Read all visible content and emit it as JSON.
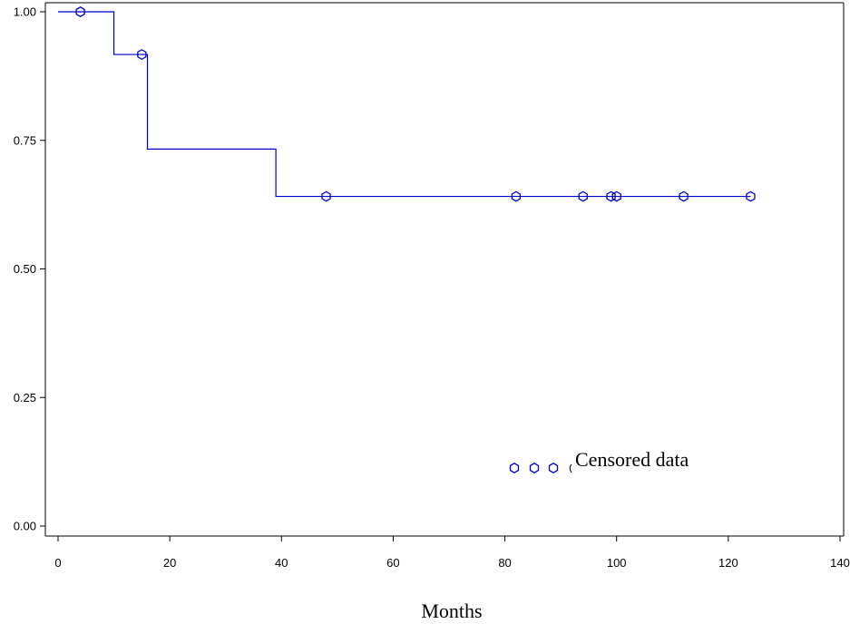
{
  "chart_data": {
    "type": "line",
    "step": true,
    "title": "",
    "xlabel": "Months",
    "ylabel": "",
    "xlim": [
      0,
      140
    ],
    "ylim": [
      0,
      1.0
    ],
    "x_ticks": [
      0,
      20,
      40,
      60,
      80,
      100,
      120,
      140
    ],
    "y_ticks": [
      0.0,
      0.25,
      0.5,
      0.75,
      1.0
    ],
    "x_tick_labels": [
      "0",
      "20",
      "40",
      "60",
      "80",
      "100",
      "120",
      "140"
    ],
    "y_tick_labels": [
      "0.00",
      "0.25",
      "0.50",
      "0.75",
      "1.00"
    ],
    "grid": false,
    "series": [
      {
        "color": "#0000cc",
        "steps": [
          {
            "x": 0,
            "y": 1.0
          },
          {
            "x": 10,
            "y": 0.917
          },
          {
            "x": 16,
            "y": 0.733
          },
          {
            "x": 39,
            "y": 0.641
          }
        ],
        "end_x": 124,
        "censored": [
          {
            "x": 4,
            "y": 1.0
          },
          {
            "x": 15,
            "y": 0.917
          },
          {
            "x": 48,
            "y": 0.641
          },
          {
            "x": 82,
            "y": 0.641
          },
          {
            "x": 94,
            "y": 0.641
          },
          {
            "x": 99,
            "y": 0.641
          },
          {
            "x": 100,
            "y": 0.641
          },
          {
            "x": 112,
            "y": 0.641
          },
          {
            "x": 124,
            "y": 0.641
          }
        ]
      }
    ],
    "legend": {
      "placement": "bottom-right",
      "label": "Censored data",
      "marker_count": 3
    }
  }
}
